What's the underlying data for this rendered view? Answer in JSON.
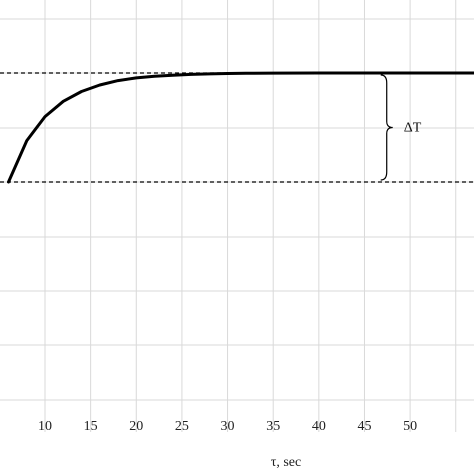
{
  "chart_data": {
    "type": "line",
    "title": "",
    "xlabel": "τ, sec",
    "ylabel": "",
    "xlim": [
      6,
      57
    ],
    "x_ticks": [
      10,
      15,
      20,
      25,
      30,
      35,
      40,
      45,
      50
    ],
    "x_tick_labels": [
      "10",
      "15",
      "20",
      "25",
      "30",
      "35",
      "40",
      "45",
      "50"
    ],
    "grid": true,
    "legend": "none",
    "series": [
      {
        "x": [
          6,
          8,
          10,
          12,
          14,
          16,
          18,
          20,
          22,
          24,
          26,
          28,
          30,
          32,
          35,
          40,
          45,
          50,
          55,
          57
        ],
        "y": [
          0,
          0.38,
          0.6,
          0.74,
          0.83,
          0.89,
          0.93,
          0.955,
          0.97,
          0.98,
          0.987,
          0.992,
          0.995,
          0.997,
          0.999,
          1.0,
          1.0,
          1.0,
          1.0,
          1.0
        ],
        "color": "#000000"
      }
    ],
    "reference_lines": [
      {
        "y": 1.0,
        "style": "dashed"
      },
      {
        "y": 0.0,
        "style": "dashed"
      }
    ],
    "annotations": [
      {
        "text": "ΔT",
        "type": "brace",
        "x": 47,
        "y_range": [
          0,
          1
        ]
      }
    ]
  }
}
